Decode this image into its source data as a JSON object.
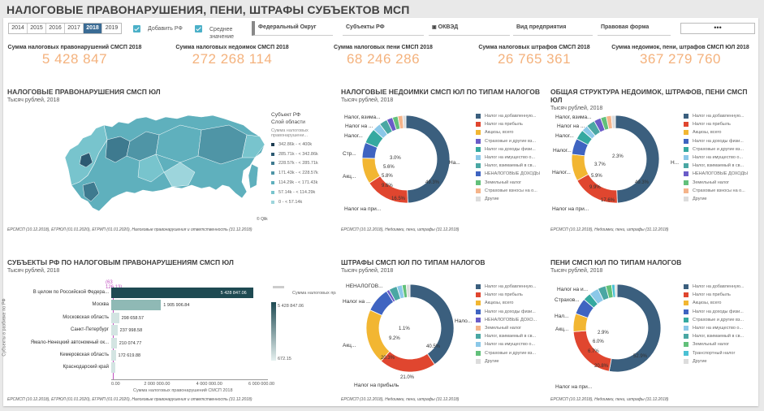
{
  "app_title": "НАЛОГОВЫЕ ПРАВОНАРУШЕНИЯ, ПЕНИ, ШТРАФЫ СУБЪЕКТОВ МСП",
  "years": [
    "2014",
    "2015",
    "2016",
    "2017",
    "2018",
    "2019"
  ],
  "selected_year": "2018",
  "checkboxes": {
    "add_rf": "Добавить РФ",
    "average": "Среднее значение"
  },
  "filters": [
    "Федеральный Округ",
    "Субъекты РФ",
    "ОКВЭД",
    "Вид предприятия",
    "Правовая форма"
  ],
  "more_label": "•••",
  "kpis": [
    {
      "label": "Сумма налоговых правонарушений СМСП 2018",
      "value": "5 428 847"
    },
    {
      "label": "Сумма налоговых недоимок СМСП 2018",
      "value": "272 268 114"
    },
    {
      "label": "Сумма налоговых пени СМСП 2018",
      "value": "68 246 286"
    },
    {
      "label": "Сумма налоговых штрафов СМСП 2018",
      "value": "26 765 361"
    },
    {
      "label": "Сумма недоимок, пени, штрафов СМСП ЮЛ 2018",
      "value": "367 279 760"
    }
  ],
  "colors": {
    "navy": "#3b5f7e",
    "red": "#e0462f",
    "yellow": "#f2b632",
    "purple": "#6a5cc8",
    "blue": "#3f64c1",
    "teal": "#35a9a0",
    "lightblue": "#8bc8e8",
    "teal2": "#4aa7a3",
    "green": "#62c07a",
    "peach": "#f5b48a",
    "cyan": "#4bc1d4",
    "grey": "#dcdcdc",
    "kpi": "#f4b27d"
  },
  "map_panel": {
    "title": "НАЛОГОВЫЕ ПРАВОНАРУШЕНИЯ СМСП ЮЛ",
    "subtitle": "Тысяч рублей, 2018",
    "legend_title": "Субъект РФ",
    "legend_sub1": "Слой области",
    "legend_sub2": "Сумма налоговых правонарушени...",
    "ranges": [
      "342.86k - < 400k",
      "285.71k - < 342.86k",
      "228.57k - < 285.71k",
      "171.43k - < 228.57k",
      "114.29k - < 171.43k",
      "57.14k - < 114.29k",
      "0 - < 57.14k"
    ],
    "range_colors": [
      "#1e3d52",
      "#2d5a72",
      "#3e7a8f",
      "#4f95a6",
      "#5fb0bd",
      "#78c4cd",
      "#9dd5dc"
    ],
    "qlik": "© Qlik",
    "footer": "ЕРСМСП (10.12.2018), ЕГРЮЛ (01.01.2020), ЕГРИП (01.01.2020), Налоговые правонарушения и ответственность (31.12.2018)"
  },
  "arrears_panel": {
    "title": "НАЛОГОВЫЕ НЕДОИМКИ СМСП ЮЛ ПО ТИПАМ НАЛОГОВ",
    "subtitle": "Тысяч рублей, 2018",
    "legend": [
      "Налог на добавленную...",
      "Налог на прибыль",
      "Акцизы, всего",
      "Страховые и другие вз...",
      "Налог на доходы физи...",
      "Налог на имущество о...",
      "Налог, взимаемый в св...",
      "НЕНАЛОГОВЫЕ ДОХОДЫ",
      "Земельный налог",
      "Страховые взносы на о...",
      "Другие"
    ],
    "legend_colors": [
      "#3b5f7e",
      "#e0462f",
      "#f2b632",
      "#6a5cc8",
      "#35a9a0",
      "#8bc8e8",
      "#4aa7a3",
      "#3f64c1",
      "#62c07a",
      "#f5b48a",
      "#dcdcdc"
    ],
    "slices": [
      {
        "color": "#3b5f7e",
        "value": 49.3
      },
      {
        "color": "#e0462f",
        "value": 16.5
      },
      {
        "color": "#f2b632",
        "value": 9.6
      },
      {
        "color": "#3f64c1",
        "value": 5.8
      },
      {
        "color": "#35a9a0",
        "value": 5.6
      },
      {
        "color": "#8bc8e8",
        "value": 3.0
      },
      {
        "color": "#4aa7a3",
        "value": 3.0
      },
      {
        "color": "#6a5cc8",
        "value": 2.2
      },
      {
        "color": "#62c07a",
        "value": 2.0
      },
      {
        "color": "#f5b48a",
        "value": 1.8
      },
      {
        "color": "#dcdcdc",
        "value": 1.2
      }
    ],
    "pct_labels": [
      "49.3%",
      "16.5%",
      "9.6%",
      "5.8%",
      "5.6%",
      "3.0%"
    ],
    "outer_labels": [
      "Налог, взима...",
      "Налог на ...",
      "Налог...",
      "Стр...",
      "Акц...",
      "Налог на при...",
      "На..."
    ],
    "footer": "ЕРСМСП (10.12.2018), Недоимки, пени, штрафы (31.12.2018)"
  },
  "structure_panel": {
    "title": "ОБЩАЯ СТРУКТУРА НЕДОИМОК, ШТРАФОВ, ПЕНИ СМСП ЮЛ",
    "subtitle": "Тысяч рублей, 2018",
    "legend": [
      "Налог на добавленную...",
      "Налог на прибыль",
      "Акцизы, всего",
      "Налог на доходы физи...",
      "Страховые и другие вз...",
      "Налог на имущество о...",
      "Налог, взимаемый в св...",
      "НЕНАЛОГОВЫЕ ДОХОДЫ",
      "Земельный налог",
      "Страховые взносы на о...",
      "Другие"
    ],
    "legend_colors": [
      "#3b5f7e",
      "#e0462f",
      "#f2b632",
      "#3f64c1",
      "#35a9a0",
      "#8bc8e8",
      "#4aa7a3",
      "#6a5cc8",
      "#62c07a",
      "#f5b48a",
      "#dcdcdc"
    ],
    "slices": [
      {
        "color": "#3b5f7e",
        "value": 49.3
      },
      {
        "color": "#e0462f",
        "value": 17.6
      },
      {
        "color": "#f2b632",
        "value": 9.9
      },
      {
        "color": "#3f64c1",
        "value": 5.9
      },
      {
        "color": "#35a9a0",
        "value": 3.7
      },
      {
        "color": "#8bc8e8",
        "value": 2.3
      },
      {
        "color": "#4aa7a3",
        "value": 3.2
      },
      {
        "color": "#6a5cc8",
        "value": 2.6
      },
      {
        "color": "#62c07a",
        "value": 2.1
      },
      {
        "color": "#f5b48a",
        "value": 1.9
      },
      {
        "color": "#dcdcdc",
        "value": 1.5
      }
    ],
    "pct_labels": [
      "49.3%",
      "17.6%",
      "9.9%",
      "5.9%",
      "3.7%",
      "2.3%"
    ],
    "outer_labels": [
      "Налог, взима...",
      "Налог на ...",
      "Налог...",
      "Налог...",
      "Налог...",
      "Налог на при...",
      "Н..."
    ],
    "footer": "ЕРСМСП (10.12.2018), Недоимки, пени, штрафы (31.12.2018)"
  },
  "subjects_panel": {
    "title": "СУБЪЕКТЫ РФ ПО НАЛОГОВЫМ ПРАВОНАРУШЕНИЯМ СМСП ЮЛ",
    "subtitle": "Тысяч рублей, 2018",
    "yaxis_title": "Субъекты в разбивке по РФ",
    "xaxis_title": "Сумма налоговых правонарушений СМСП 2018",
    "avg_label": "(63 126.13)",
    "rows": [
      {
        "label": "В целом по Российской Федера...",
        "value": 5428847.06,
        "text": "5 428 847.06"
      },
      {
        "label": "Москва",
        "value": 1905906.84,
        "text": "1 905 906.84"
      },
      {
        "label": "Московская область",
        "value": 298658.57,
        "text": "298 658.57"
      },
      {
        "label": "Санкт-Петербург",
        "value": 237998.58,
        "text": "237 998.58"
      },
      {
        "label": "Ямало-Ненецкий автономный ок...",
        "value": 210074.77,
        "text": "210 074.77"
      },
      {
        "label": "Кемеровская область",
        "value": 172619.88,
        "text": "172 619.88"
      },
      {
        "label": "Краснодарский край",
        "value": 160000,
        "text": ""
      }
    ],
    "xticks": [
      "0.00",
      "2 000 000.00",
      "4 000 000.00",
      "6 000 000.00"
    ],
    "xmax": 6000000,
    "grad_legend_title": "Сумма налоговых правонарушени...",
    "grad_max": "5 428 847.06",
    "grad_min": "672.15",
    "footer": "ЕРСМСП (10.12.2018), ЕГРЮЛ (01.01.2020), ЕГРИП (01.01.2020), Налоговые правонарушения и ответственность (31.12.2018)"
  },
  "fines_panel": {
    "title": "ШТРАФЫ СМСП ЮЛ ПО ТИПАМ НАЛОГОВ",
    "subtitle": "Тысяч рублей, 2018",
    "legend": [
      "Налог на добавленную...",
      "Налог на прибыль",
      "Акцизы, всего",
      "Налог на доходы физи...",
      "НЕНАЛОГОВЫЕ ДОХО...",
      "Земельный налог",
      "Налог, взимаемый в св...",
      "Налог на имущество о...",
      "Страховые и другие вз...",
      "Другие"
    ],
    "legend_colors": [
      "#3b5f7e",
      "#e0462f",
      "#f2b632",
      "#3f64c1",
      "#6a5cc8",
      "#f5b48a",
      "#4aa7a3",
      "#8bc8e8",
      "#62c07a",
      "#dcdcdc"
    ],
    "slices": [
      {
        "color": "#3b5f7e",
        "value": 40.5
      },
      {
        "color": "#e0462f",
        "value": 21.0
      },
      {
        "color": "#f2b632",
        "value": 20.3
      },
      {
        "color": "#3f64c1",
        "value": 9.2
      },
      {
        "color": "#6a5cc8",
        "value": 1.1
      },
      {
        "color": "#4aa7a3",
        "value": 3.0
      },
      {
        "color": "#8bc8e8",
        "value": 2.0
      },
      {
        "color": "#62c07a",
        "value": 1.5
      },
      {
        "color": "#dcdcdc",
        "value": 1.4
      }
    ],
    "pct_labels": [
      "40.5%",
      "21.0%",
      "20.3%",
      "9.2%",
      "1.1%"
    ],
    "outer_labels": [
      "НЕНАЛОГОВ...",
      "Налог на ...",
      "Акц...",
      "Налог на прибыль",
      "Нало..."
    ],
    "footer": "ЕРСМСП (10.12.2018), Недоимки, пени, штрафы (31.12.2018)"
  },
  "penalties_panel": {
    "title": "ПЕНИ СМСП ЮЛ ПО ТИПАМ НАЛОГОВ",
    "subtitle": "Тысяч рублей, 2018",
    "legend": [
      "Налог на добавленную...",
      "Налог на прибыль",
      "Акцизы, всего",
      "Налог на доходы физи...",
      "Страховые и другие вз...",
      "Налог на имущество о...",
      "Налог, взимаемый в св...",
      "Земельный налог",
      "Транспортный налог",
      "Другие"
    ],
    "legend_colors": [
      "#3b5f7e",
      "#e0462f",
      "#f2b632",
      "#3f64c1",
      "#35a9a0",
      "#8bc8e8",
      "#4aa7a3",
      "#62c07a",
      "#4bc1d4",
      "#dcdcdc"
    ],
    "slices": [
      {
        "color": "#3b5f7e",
        "value": 52.9
      },
      {
        "color": "#e0462f",
        "value": 20.8
      },
      {
        "color": "#f2b632",
        "value": 6.7
      },
      {
        "color": "#3f64c1",
        "value": 6.0
      },
      {
        "color": "#35a9a0",
        "value": 2.9
      },
      {
        "color": "#8bc8e8",
        "value": 3.5
      },
      {
        "color": "#4aa7a3",
        "value": 3.0
      },
      {
        "color": "#62c07a",
        "value": 2.2
      },
      {
        "color": "#4bc1d4",
        "value": 1.2
      },
      {
        "color": "#dcdcdc",
        "value": 0.8
      }
    ],
    "pct_labels": [
      "52.9%",
      "20.8%",
      "6.7%",
      "6.0%",
      "2.9%"
    ],
    "outer_labels": [
      "Налог на и...",
      "Страхов...",
      "Нал...",
      "Акц...",
      "Налог на при..."
    ],
    "footer": "ЕРСМСП (10.12.2018), Недоимки, пени, штрафы (31.12.2018)"
  }
}
